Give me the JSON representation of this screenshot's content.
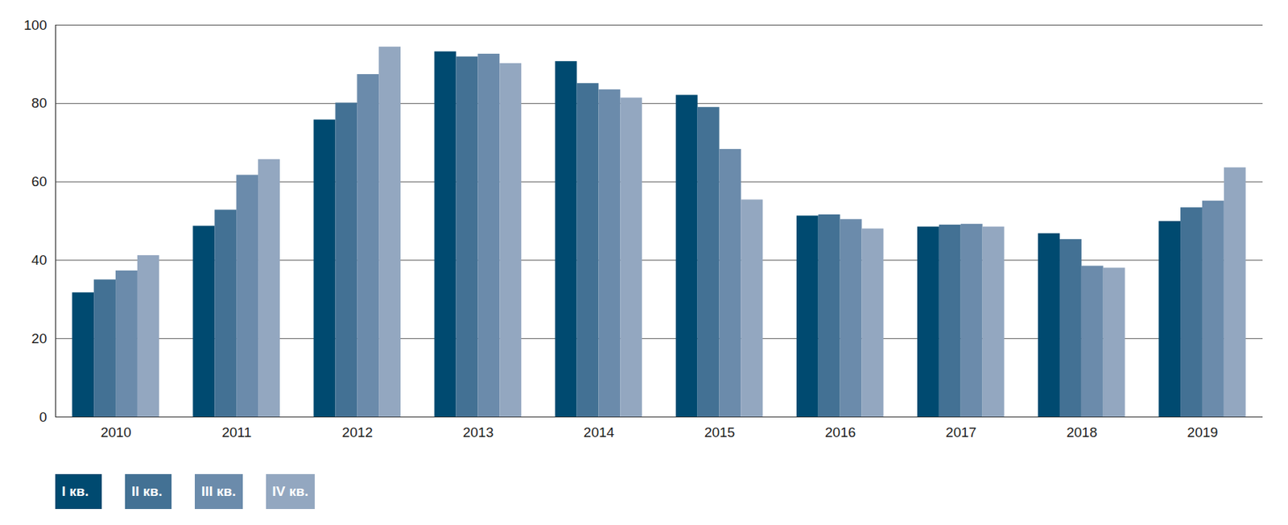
{
  "chart_data": {
    "type": "bar",
    "categories": [
      "2010",
      "2011",
      "2012",
      "2013",
      "2014",
      "2015",
      "2016",
      "2017",
      "2018",
      "2019"
    ],
    "series": [
      {
        "name": "I кв.",
        "color": "#004a70",
        "values": [
          31.7,
          48.7,
          75.8,
          93.2,
          90.7,
          82.1,
          51.3,
          48.5,
          46.8,
          49.9
        ]
      },
      {
        "name": "II кв.",
        "color": "#437194",
        "values": [
          35.0,
          52.8,
          80.1,
          91.9,
          85.1,
          79.0,
          51.6,
          49.0,
          45.3,
          53.4
        ]
      },
      {
        "name": "III кв.",
        "color": "#6b8bab",
        "values": [
          37.3,
          61.7,
          87.4,
          92.6,
          83.5,
          68.3,
          50.4,
          49.2,
          38.5,
          55.1
        ]
      },
      {
        "name": "IV кв.",
        "color": "#93a7c0",
        "values": [
          41.2,
          65.7,
          94.4,
          90.2,
          81.4,
          55.4,
          48.0,
          48.5,
          38.0,
          63.6
        ]
      }
    ],
    "ylim": [
      0,
      100
    ],
    "yticks": [
      0,
      20,
      40,
      60,
      80,
      100
    ],
    "grid": true
  }
}
